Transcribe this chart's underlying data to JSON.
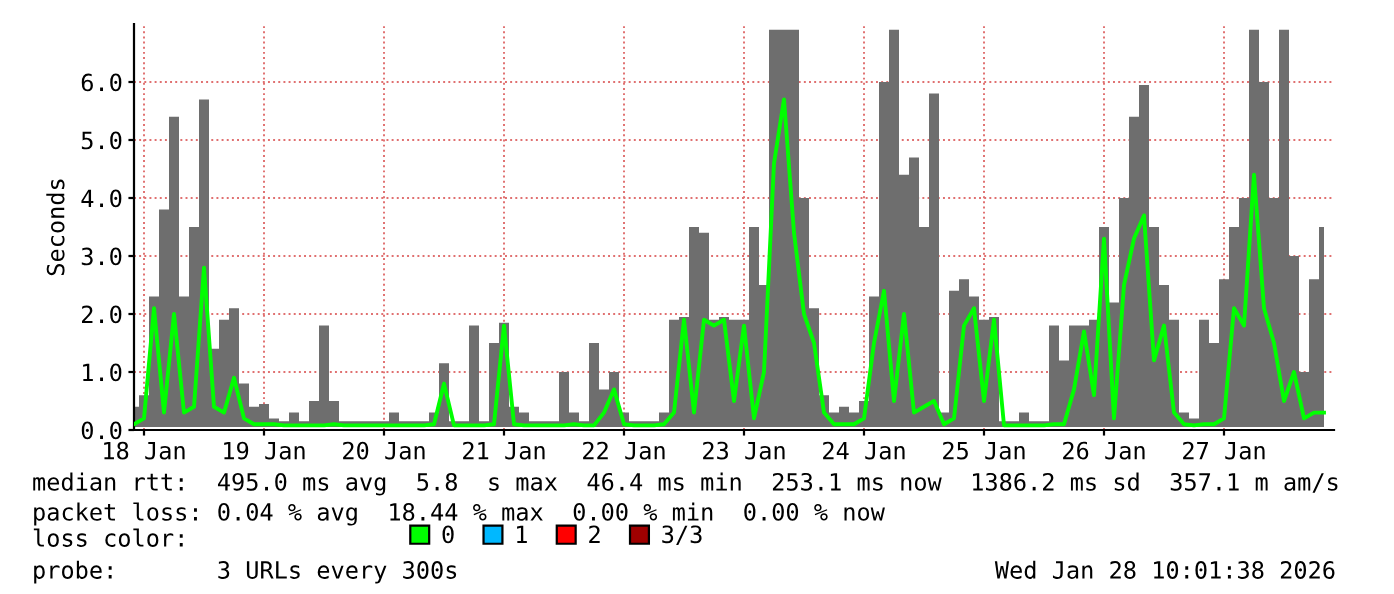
{
  "chart_data": {
    "type": "line",
    "ylabel": "Seconds",
    "xlim": [
      "2026-01-18T10:00",
      "2026-01-28T10:00"
    ],
    "xticks": [
      {
        "value": "2026-01-18T12:00",
        "label": "18 Jan"
      },
      {
        "value": "2026-01-19T12:00",
        "label": "19 Jan"
      },
      {
        "value": "2026-01-20T12:00",
        "label": "20 Jan"
      },
      {
        "value": "2026-01-21T12:00",
        "label": "21 Jan"
      },
      {
        "value": "2026-01-22T12:00",
        "label": "22 Jan"
      },
      {
        "value": "2026-01-23T12:00",
        "label": "23 Jan"
      },
      {
        "value": "2026-01-24T12:00",
        "label": "24 Jan"
      },
      {
        "value": "2026-01-25T12:00",
        "label": "25 Jan"
      },
      {
        "value": "2026-01-26T12:00",
        "label": "26 Jan"
      },
      {
        "value": "2026-01-27T12:00",
        "label": "27 Jan"
      }
    ],
    "ylim": [
      0,
      7
    ],
    "yticks": [
      {
        "value": 0,
        "label": "0.0"
      },
      {
        "value": 1,
        "label": "1.0"
      },
      {
        "value": 2,
        "label": "2.0"
      },
      {
        "value": 3,
        "label": "3.0"
      },
      {
        "value": 4,
        "label": "4.0"
      },
      {
        "value": 5,
        "label": "5.0"
      },
      {
        "value": 6,
        "label": "6.0"
      }
    ],
    "grid": true,
    "legend": "bottom",
    "legend_title": "loss color:",
    "x": [
      "2026-01-18T10:00",
      "2026-01-18T12:00",
      "2026-01-18T14:00",
      "2026-01-18T16:00",
      "2026-01-18T18:00",
      "2026-01-18T20:00",
      "2026-01-18T22:00",
      "2026-01-19T00:00",
      "2026-01-19T02:00",
      "2026-01-19T04:00",
      "2026-01-19T06:00",
      "2026-01-19T08:00",
      "2026-01-19T10:00",
      "2026-01-19T12:00",
      "2026-01-19T14:00",
      "2026-01-19T16:00",
      "2026-01-19T18:00",
      "2026-01-19T20:00",
      "2026-01-19T22:00",
      "2026-01-20T00:00",
      "2026-01-20T02:00",
      "2026-01-20T04:00",
      "2026-01-20T06:00",
      "2026-01-20T08:00",
      "2026-01-20T10:00",
      "2026-01-20T12:00",
      "2026-01-20T14:00",
      "2026-01-20T16:00",
      "2026-01-20T18:00",
      "2026-01-20T20:00",
      "2026-01-20T22:00",
      "2026-01-21T00:00",
      "2026-01-21T02:00",
      "2026-01-21T04:00",
      "2026-01-21T06:00",
      "2026-01-21T08:00",
      "2026-01-21T10:00",
      "2026-01-21T12:00",
      "2026-01-21T14:00",
      "2026-01-21T16:00",
      "2026-01-21T18:00",
      "2026-01-21T20:00",
      "2026-01-21T22:00",
      "2026-01-22T00:00",
      "2026-01-22T02:00",
      "2026-01-22T04:00",
      "2026-01-22T06:00",
      "2026-01-22T08:00",
      "2026-01-22T10:00",
      "2026-01-22T12:00",
      "2026-01-22T14:00",
      "2026-01-22T16:00",
      "2026-01-22T18:00",
      "2026-01-22T20:00",
      "2026-01-22T22:00",
      "2026-01-23T00:00",
      "2026-01-23T02:00",
      "2026-01-23T04:00",
      "2026-01-23T06:00",
      "2026-01-23T08:00",
      "2026-01-23T10:00",
      "2026-01-23T12:00",
      "2026-01-23T14:00",
      "2026-01-23T16:00",
      "2026-01-23T18:00",
      "2026-01-23T20:00",
      "2026-01-23T22:00",
      "2026-01-24T00:00",
      "2026-01-24T02:00",
      "2026-01-24T04:00",
      "2026-01-24T06:00",
      "2026-01-24T08:00",
      "2026-01-24T10:00",
      "2026-01-24T12:00",
      "2026-01-24T14:00",
      "2026-01-24T16:00",
      "2026-01-24T18:00",
      "2026-01-24T20:00",
      "2026-01-24T22:00",
      "2026-01-25T00:00",
      "2026-01-25T02:00",
      "2026-01-25T04:00",
      "2026-01-25T06:00",
      "2026-01-25T08:00",
      "2026-01-25T10:00",
      "2026-01-25T12:00",
      "2026-01-25T14:00",
      "2026-01-25T16:00",
      "2026-01-25T18:00",
      "2026-01-25T20:00",
      "2026-01-25T22:00",
      "2026-01-26T00:00",
      "2026-01-26T02:00",
      "2026-01-26T04:00",
      "2026-01-26T06:00",
      "2026-01-26T08:00",
      "2026-01-26T10:00",
      "2026-01-26T12:00",
      "2026-01-26T14:00",
      "2026-01-26T16:00",
      "2026-01-26T18:00",
      "2026-01-26T20:00",
      "2026-01-26T22:00",
      "2026-01-27T00:00",
      "2026-01-27T02:00",
      "2026-01-27T04:00",
      "2026-01-27T06:00",
      "2026-01-27T08:00",
      "2026-01-27T10:00",
      "2026-01-27T12:00",
      "2026-01-27T14:00",
      "2026-01-27T16:00",
      "2026-01-27T18:00",
      "2026-01-27T20:00",
      "2026-01-27T22:00",
      "2026-01-28T00:00",
      "2026-01-28T02:00",
      "2026-01-28T04:00",
      "2026-01-28T06:00",
      "2026-01-28T08:00"
    ],
    "series": [
      {
        "name": "0",
        "color": "#00ff00",
        "values": [
          0.1,
          0.2,
          2.1,
          0.3,
          2.0,
          0.3,
          0.4,
          2.8,
          0.4,
          0.3,
          0.9,
          0.2,
          0.1,
          0.1,
          0.1,
          0.08,
          0.08,
          0.08,
          0.08,
          0.08,
          0.1,
          0.08,
          0.08,
          0.08,
          0.08,
          0.08,
          0.08,
          0.08,
          0.08,
          0.08,
          0.1,
          0.8,
          0.08,
          0.08,
          0.08,
          0.08,
          0.1,
          1.8,
          0.1,
          0.08,
          0.08,
          0.08,
          0.08,
          0.08,
          0.1,
          0.08,
          0.08,
          0.3,
          0.7,
          0.1,
          0.08,
          0.08,
          0.08,
          0.1,
          0.3,
          1.9,
          0.3,
          1.9,
          1.8,
          1.9,
          0.5,
          1.8,
          0.2,
          1.0,
          4.6,
          5.7,
          3.4,
          2.0,
          1.5,
          0.3,
          0.1,
          0.1,
          0.1,
          0.2,
          1.5,
          2.4,
          0.5,
          2.0,
          0.3,
          0.4,
          0.5,
          0.1,
          0.2,
          1.8,
          2.1,
          0.5,
          1.9,
          0.08,
          0.08,
          0.08,
          0.08,
          0.08,
          0.1,
          0.1,
          0.7,
          1.7,
          0.6,
          3.3,
          0.2,
          2.5,
          3.3,
          3.7,
          1.2,
          1.8,
          0.3,
          0.1,
          0.08,
          0.1,
          0.1,
          0.2,
          2.1,
          1.8,
          4.4,
          2.1,
          1.5,
          0.5,
          1.0,
          0.2,
          0.3,
          0.3
        ],
        "lower": [
          0.05,
          0.05,
          0.05,
          0.05,
          0.05,
          0.05,
          0.05,
          0.05,
          0.05,
          0.05,
          0.05,
          0.05,
          0.05,
          0.05,
          0.05,
          0.05,
          0.05,
          0.05,
          0.05,
          0.05,
          0.05,
          0.05,
          0.05,
          0.05,
          0.05,
          0.05,
          0.05,
          0.05,
          0.05,
          0.05,
          0.05,
          0.05,
          0.05,
          0.05,
          0.05,
          0.05,
          0.05,
          0.05,
          0.05,
          0.05,
          0.05,
          0.05,
          0.05,
          0.05,
          0.05,
          0.05,
          0.05,
          0.05,
          0.05,
          0.05,
          0.05,
          0.05,
          0.05,
          0.05,
          0.05,
          0.05,
          0.05,
          0.05,
          0.05,
          0.05,
          0.05,
          0.05,
          0.05,
          0.05,
          0.05,
          0.05,
          0.05,
          0.05,
          0.05,
          0.05,
          0.05,
          0.05,
          0.05,
          0.05,
          0.05,
          0.05,
          0.05,
          0.05,
          0.05,
          0.05,
          0.05,
          0.05,
          0.05,
          0.05,
          0.05,
          0.05,
          0.05,
          0.05,
          0.05,
          0.05,
          0.05,
          0.05,
          0.05,
          0.05,
          0.05,
          0.05,
          0.05,
          0.05,
          0.05,
          0.05,
          0.05,
          0.05,
          0.05,
          0.05,
          0.05,
          0.05,
          0.05,
          0.05,
          0.05,
          0.05,
          0.05,
          0.05,
          0.05,
          0.05,
          0.05,
          0.05,
          0.05,
          0.05,
          0.05,
          0.05
        ],
        "upper": [
          0.4,
          0.6,
          2.3,
          3.8,
          5.4,
          2.3,
          3.5,
          5.7,
          1.4,
          1.9,
          2.1,
          0.8,
          0.4,
          0.45,
          0.2,
          0.15,
          0.3,
          0.15,
          0.5,
          1.8,
          0.5,
          0.15,
          0.15,
          0.15,
          0.15,
          0.15,
          0.3,
          0.15,
          0.15,
          0.15,
          0.3,
          1.15,
          0.15,
          0.15,
          1.8,
          0.15,
          1.5,
          1.85,
          0.4,
          0.3,
          0.15,
          0.15,
          0.15,
          1.0,
          0.3,
          0.15,
          1.5,
          0.7,
          1.0,
          0.3,
          0.15,
          0.15,
          0.15,
          0.3,
          1.9,
          1.95,
          3.5,
          3.4,
          1.9,
          1.95,
          1.9,
          1.9,
          3.5,
          2.5,
          6.9,
          6.9,
          6.9,
          4.0,
          2.1,
          0.6,
          0.3,
          0.4,
          0.3,
          0.5,
          2.3,
          6.0,
          6.9,
          4.4,
          4.7,
          3.5,
          5.8,
          0.3,
          2.4,
          2.6,
          2.3,
          1.9,
          1.95,
          0.15,
          0.15,
          0.3,
          0.15,
          0.15,
          1.8,
          1.2,
          1.8,
          1.8,
          1.9,
          3.5,
          2.2,
          4.0,
          5.4,
          5.95,
          3.5,
          2.5,
          1.9,
          0.3,
          0.2,
          1.9,
          1.5,
          2.6,
          3.5,
          4.0,
          6.9,
          6.0,
          4.0,
          6.9,
          3.0,
          1.0,
          2.6,
          3.5
        ]
      },
      {
        "name": "1",
        "color": "#00b8ff",
        "values": [
          null,
          null,
          null,
          null,
          null,
          null,
          null,
          null,
          null,
          null,
          null,
          null,
          null,
          null,
          null,
          null,
          null,
          null,
          null,
          null,
          null,
          null,
          null,
          null,
          null,
          null,
          null,
          null,
          null,
          null,
          null,
          null,
          null,
          null,
          null,
          null,
          null,
          null,
          null,
          null,
          null,
          null,
          null,
          null,
          null,
          null,
          null,
          null,
          null,
          null,
          null,
          null,
          null,
          null,
          null,
          null,
          null,
          null,
          null,
          null,
          null,
          null,
          null,
          null,
          null,
          null,
          null,
          null,
          null,
          null,
          null,
          null,
          null,
          null,
          null,
          null,
          null,
          null,
          null,
          null,
          null,
          null,
          null,
          null,
          null,
          null,
          null,
          null,
          null,
          null,
          null,
          null,
          null,
          null,
          null,
          null,
          null,
          null,
          null,
          null,
          null,
          null,
          null,
          null,
          null,
          null,
          null,
          null,
          null,
          null,
          null,
          null,
          null,
          null,
          null,
          null,
          null,
          null,
          null,
          null
        ]
      },
      {
        "name": "2",
        "color": "#ff0000",
        "values": [
          null,
          null,
          null,
          null,
          null,
          null,
          null,
          null,
          null,
          null,
          null,
          null,
          null,
          null,
          null,
          null,
          null,
          null,
          null,
          null,
          null,
          null,
          null,
          null,
          null,
          null,
          null,
          null,
          null,
          null,
          null,
          null,
          null,
          null,
          null,
          null,
          null,
          null,
          null,
          null,
          null,
          null,
          null,
          null,
          null,
          null,
          null,
          null,
          null,
          null,
          null,
          null,
          null,
          null,
          null,
          null,
          null,
          null,
          null,
          null,
          null,
          null,
          null,
          null,
          null,
          null,
          null,
          null,
          null,
          null,
          null,
          null,
          null,
          null,
          null,
          null,
          null,
          null,
          null,
          null,
          null,
          null,
          null,
          null,
          null,
          null,
          null,
          null,
          null,
          null,
          null,
          null,
          null,
          null,
          null,
          null,
          null,
          null,
          null,
          null,
          null,
          null,
          null,
          null,
          null,
          null,
          null,
          null,
          null,
          null,
          null,
          null,
          null,
          null,
          null,
          null,
          null,
          null,
          null,
          null
        ]
      },
      {
        "name": "3/3",
        "color": "#a00000",
        "values": [
          null,
          null,
          null,
          null,
          null,
          null,
          null,
          null,
          null,
          null,
          null,
          null,
          null,
          null,
          null,
          null,
          null,
          null,
          null,
          null,
          null,
          null,
          null,
          null,
          null,
          null,
          null,
          null,
          null,
          null,
          null,
          null,
          null,
          null,
          null,
          null,
          null,
          null,
          null,
          null,
          null,
          null,
          null,
          null,
          null,
          null,
          null,
          null,
          null,
          null,
          null,
          null,
          null,
          null,
          null,
          null,
          null,
          null,
          null,
          null,
          null,
          null,
          null,
          null,
          null,
          null,
          null,
          null,
          null,
          null,
          null,
          null,
          null,
          null,
          null,
          null,
          null,
          null,
          null,
          null,
          null,
          null,
          null,
          null,
          null,
          null,
          null,
          null,
          null,
          null,
          null,
          null,
          null,
          null,
          null,
          null,
          null,
          null,
          null,
          null,
          null,
          null,
          null,
          null,
          null,
          null,
          null,
          null,
          null,
          null,
          null,
          null,
          null,
          null,
          null,
          null,
          null,
          null,
          null,
          null
        ]
      }
    ],
    "annotations": [
      "median rtt:  495.0 ms avg  5.8  s max  46.4 ms min  253.1 ms now  1386.2 ms sd  357.1 m am/s",
      "packet loss: 0.04 % avg  18.44 % max  0.00 % min  0.00 % now",
      "probe:       3 URLs every 300s",
      "Wed Jan 28 10:01:38 2026"
    ]
  }
}
